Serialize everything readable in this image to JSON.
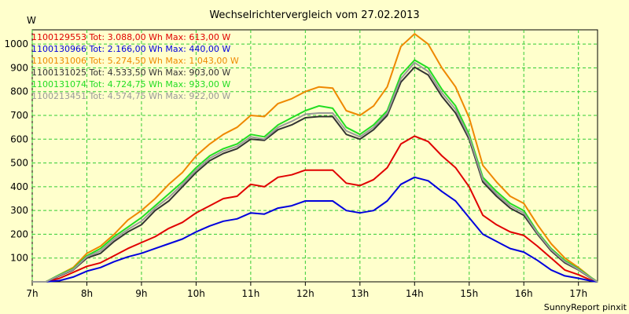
{
  "chart_data": {
    "type": "line",
    "title": "Wechselrichtervergleich vom 27.02.2013",
    "ylabel": "W",
    "xlabel": "",
    "credit": "SunnyReport pinxit",
    "ylim": [
      0,
      1060
    ],
    "xlim": [
      7,
      17.35
    ],
    "y_ticks": [
      {
        "value": 100,
        "label": "100"
      },
      {
        "value": 200,
        "label": "200"
      },
      {
        "value": 300,
        "label": "300"
      },
      {
        "value": 400,
        "label": "400"
      },
      {
        "value": 500,
        "label": "500"
      },
      {
        "value": 600,
        "label": "600"
      },
      {
        "value": 700,
        "label": "700"
      },
      {
        "value": 800,
        "label": "800"
      },
      {
        "value": 900,
        "label": "900"
      },
      {
        "value": 1000,
        "label": "1000"
      }
    ],
    "x_ticks": [
      {
        "value": 7,
        "label": "7h"
      },
      {
        "value": 8,
        "label": "8h"
      },
      {
        "value": 9,
        "label": "9h"
      },
      {
        "value": 10,
        "label": "10h"
      },
      {
        "value": 11,
        "label": "11h"
      },
      {
        "value": 12,
        "label": "12h"
      },
      {
        "value": 13,
        "label": "13h"
      },
      {
        "value": 14,
        "label": "14h"
      },
      {
        "value": 15,
        "label": "15h"
      },
      {
        "value": 16,
        "label": "16h"
      },
      {
        "value": 17,
        "label": "17h"
      }
    ],
    "grid": true,
    "legend_position": "top-left",
    "series": [
      {
        "name": "1100129553 Tot: 3.088,00 Wh Max: 613,00 W",
        "color": "#e00000",
        "points": [
          [
            7.0,
            0
          ],
          [
            7.25,
            0
          ],
          [
            7.5,
            15
          ],
          [
            7.75,
            40
          ],
          [
            8.0,
            65
          ],
          [
            8.25,
            80
          ],
          [
            8.5,
            110
          ],
          [
            8.75,
            140
          ],
          [
            9.0,
            165
          ],
          [
            9.25,
            190
          ],
          [
            9.5,
            225
          ],
          [
            9.75,
            250
          ],
          [
            10.0,
            290
          ],
          [
            10.25,
            320
          ],
          [
            10.5,
            350
          ],
          [
            10.75,
            360
          ],
          [
            11.0,
            410
          ],
          [
            11.25,
            400
          ],
          [
            11.5,
            440
          ],
          [
            11.75,
            450
          ],
          [
            12.0,
            470
          ],
          [
            12.25,
            470
          ],
          [
            12.5,
            470
          ],
          [
            12.75,
            415
          ],
          [
            13.0,
            405
          ],
          [
            13.25,
            430
          ],
          [
            13.5,
            480
          ],
          [
            13.75,
            580
          ],
          [
            14.0,
            613
          ],
          [
            14.25,
            590
          ],
          [
            14.5,
            530
          ],
          [
            14.75,
            480
          ],
          [
            15.0,
            400
          ],
          [
            15.25,
            280
          ],
          [
            15.5,
            240
          ],
          [
            15.75,
            210
          ],
          [
            16.0,
            195
          ],
          [
            16.25,
            150
          ],
          [
            16.5,
            100
          ],
          [
            16.75,
            50
          ],
          [
            17.0,
            30
          ],
          [
            17.25,
            5
          ],
          [
            17.35,
            0
          ]
        ]
      },
      {
        "name": "1100130966 Tot: 2.166,00 Wh Max: 440,00 W",
        "color": "#0000dd",
        "points": [
          [
            7.0,
            0
          ],
          [
            7.25,
            0
          ],
          [
            7.5,
            5
          ],
          [
            7.75,
            20
          ],
          [
            8.0,
            45
          ],
          [
            8.25,
            60
          ],
          [
            8.5,
            85
          ],
          [
            8.75,
            105
          ],
          [
            9.0,
            120
          ],
          [
            9.25,
            140
          ],
          [
            9.5,
            160
          ],
          [
            9.75,
            180
          ],
          [
            10.0,
            210
          ],
          [
            10.25,
            235
          ],
          [
            10.5,
            255
          ],
          [
            10.75,
            265
          ],
          [
            11.0,
            290
          ],
          [
            11.25,
            285
          ],
          [
            11.5,
            310
          ],
          [
            11.75,
            320
          ],
          [
            12.0,
            340
          ],
          [
            12.25,
            340
          ],
          [
            12.5,
            340
          ],
          [
            12.75,
            300
          ],
          [
            13.0,
            290
          ],
          [
            13.25,
            300
          ],
          [
            13.5,
            340
          ],
          [
            13.75,
            410
          ],
          [
            14.0,
            440
          ],
          [
            14.25,
            425
          ],
          [
            14.5,
            380
          ],
          [
            14.75,
            340
          ],
          [
            15.0,
            270
          ],
          [
            15.25,
            200
          ],
          [
            15.5,
            170
          ],
          [
            15.75,
            140
          ],
          [
            16.0,
            125
          ],
          [
            16.25,
            90
          ],
          [
            16.5,
            50
          ],
          [
            16.75,
            25
          ],
          [
            17.0,
            15
          ],
          [
            17.25,
            3
          ],
          [
            17.35,
            0
          ]
        ]
      },
      {
        "name": "1100131006 Tot: 5.274,50 Wh Max: 1.043,00 W",
        "color": "#ee8800",
        "points": [
          [
            7.0,
            0
          ],
          [
            7.25,
            0
          ],
          [
            7.5,
            30
          ],
          [
            7.75,
            60
          ],
          [
            8.0,
            120
          ],
          [
            8.25,
            150
          ],
          [
            8.5,
            200
          ],
          [
            8.75,
            260
          ],
          [
            9.0,
            300
          ],
          [
            9.25,
            350
          ],
          [
            9.5,
            410
          ],
          [
            9.75,
            460
          ],
          [
            10.0,
            530
          ],
          [
            10.25,
            580
          ],
          [
            10.5,
            620
          ],
          [
            10.75,
            650
          ],
          [
            11.0,
            700
          ],
          [
            11.25,
            695
          ],
          [
            11.5,
            750
          ],
          [
            11.75,
            770
          ],
          [
            12.0,
            800
          ],
          [
            12.25,
            820
          ],
          [
            12.5,
            815
          ],
          [
            12.75,
            720
          ],
          [
            13.0,
            700
          ],
          [
            13.25,
            740
          ],
          [
            13.5,
            820
          ],
          [
            13.75,
            990
          ],
          [
            14.0,
            1043
          ],
          [
            14.25,
            1000
          ],
          [
            14.5,
            900
          ],
          [
            14.75,
            820
          ],
          [
            15.0,
            690
          ],
          [
            15.25,
            490
          ],
          [
            15.5,
            420
          ],
          [
            15.75,
            360
          ],
          [
            16.0,
            330
          ],
          [
            16.25,
            240
          ],
          [
            16.5,
            160
          ],
          [
            16.75,
            100
          ],
          [
            17.0,
            60
          ],
          [
            17.25,
            15
          ],
          [
            17.35,
            0
          ]
        ]
      },
      {
        "name": "1100131025 Tot: 4.533,50 Wh Max: 903,00 W",
        "color": "#333333",
        "points": [
          [
            7.0,
            0
          ],
          [
            7.25,
            0
          ],
          [
            7.5,
            25
          ],
          [
            7.75,
            50
          ],
          [
            8.0,
            100
          ],
          [
            8.25,
            120
          ],
          [
            8.5,
            170
          ],
          [
            8.75,
            210
          ],
          [
            9.0,
            240
          ],
          [
            9.25,
            300
          ],
          [
            9.5,
            340
          ],
          [
            9.75,
            400
          ],
          [
            10.0,
            460
          ],
          [
            10.25,
            510
          ],
          [
            10.5,
            540
          ],
          [
            10.75,
            560
          ],
          [
            11.0,
            600
          ],
          [
            11.25,
            595
          ],
          [
            11.5,
            640
          ],
          [
            11.75,
            660
          ],
          [
            12.0,
            690
          ],
          [
            12.25,
            695
          ],
          [
            12.5,
            695
          ],
          [
            12.75,
            620
          ],
          [
            13.0,
            600
          ],
          [
            13.25,
            640
          ],
          [
            13.5,
            700
          ],
          [
            13.75,
            840
          ],
          [
            14.0,
            903
          ],
          [
            14.25,
            870
          ],
          [
            14.5,
            780
          ],
          [
            14.75,
            710
          ],
          [
            15.0,
            600
          ],
          [
            15.25,
            420
          ],
          [
            15.5,
            360
          ],
          [
            15.75,
            310
          ],
          [
            16.0,
            280
          ],
          [
            16.25,
            200
          ],
          [
            16.5,
            130
          ],
          [
            16.75,
            80
          ],
          [
            17.0,
            50
          ],
          [
            17.25,
            12
          ],
          [
            17.35,
            0
          ]
        ]
      },
      {
        "name": "1100131074 Tot: 4.724,75 Wh Max: 933,00 W",
        "color": "#22dd22",
        "points": [
          [
            7.0,
            0
          ],
          [
            7.25,
            0
          ],
          [
            7.5,
            30
          ],
          [
            7.75,
            55
          ],
          [
            8.0,
            110
          ],
          [
            8.25,
            140
          ],
          [
            8.5,
            190
          ],
          [
            8.75,
            230
          ],
          [
            9.0,
            270
          ],
          [
            9.25,
            320
          ],
          [
            9.5,
            370
          ],
          [
            9.75,
            420
          ],
          [
            10.0,
            480
          ],
          [
            10.25,
            530
          ],
          [
            10.5,
            560
          ],
          [
            10.75,
            580
          ],
          [
            11.0,
            620
          ],
          [
            11.25,
            610
          ],
          [
            11.5,
            660
          ],
          [
            11.75,
            690
          ],
          [
            12.0,
            720
          ],
          [
            12.25,
            740
          ],
          [
            12.5,
            730
          ],
          [
            12.75,
            650
          ],
          [
            13.0,
            620
          ],
          [
            13.25,
            660
          ],
          [
            13.5,
            720
          ],
          [
            13.75,
            870
          ],
          [
            14.0,
            933
          ],
          [
            14.25,
            900
          ],
          [
            14.5,
            810
          ],
          [
            14.75,
            740
          ],
          [
            15.0,
            620
          ],
          [
            15.25,
            440
          ],
          [
            15.5,
            380
          ],
          [
            15.75,
            330
          ],
          [
            16.0,
            300
          ],
          [
            16.25,
            210
          ],
          [
            16.5,
            140
          ],
          [
            16.75,
            90
          ],
          [
            17.0,
            55
          ],
          [
            17.25,
            15
          ],
          [
            17.35,
            0
          ]
        ]
      },
      {
        "name": "1100213451 Tot: 4.574,75 Wh Max: 922,00 W",
        "color": "#999999",
        "points": [
          [
            7.0,
            0
          ],
          [
            7.25,
            0
          ],
          [
            7.5,
            27
          ],
          [
            7.75,
            52
          ],
          [
            8.0,
            105
          ],
          [
            8.25,
            130
          ],
          [
            8.5,
            180
          ],
          [
            8.75,
            220
          ],
          [
            9.0,
            255
          ],
          [
            9.25,
            310
          ],
          [
            9.5,
            355
          ],
          [
            9.75,
            410
          ],
          [
            10.0,
            470
          ],
          [
            10.25,
            520
          ],
          [
            10.5,
            550
          ],
          [
            10.75,
            570
          ],
          [
            11.0,
            610
          ],
          [
            11.25,
            600
          ],
          [
            11.5,
            650
          ],
          [
            11.75,
            675
          ],
          [
            12.0,
            705
          ],
          [
            12.25,
            710
          ],
          [
            12.5,
            710
          ],
          [
            12.75,
            635
          ],
          [
            13.0,
            610
          ],
          [
            13.25,
            650
          ],
          [
            13.5,
            710
          ],
          [
            13.75,
            855
          ],
          [
            14.0,
            922
          ],
          [
            14.25,
            885
          ],
          [
            14.5,
            795
          ],
          [
            14.75,
            725
          ],
          [
            15.0,
            610
          ],
          [
            15.25,
            430
          ],
          [
            15.5,
            370
          ],
          [
            15.75,
            320
          ],
          [
            16.0,
            290
          ],
          [
            16.25,
            205
          ],
          [
            16.5,
            135
          ],
          [
            16.75,
            85
          ],
          [
            17.0,
            52
          ],
          [
            17.25,
            13
          ],
          [
            17.35,
            0
          ]
        ]
      }
    ]
  }
}
